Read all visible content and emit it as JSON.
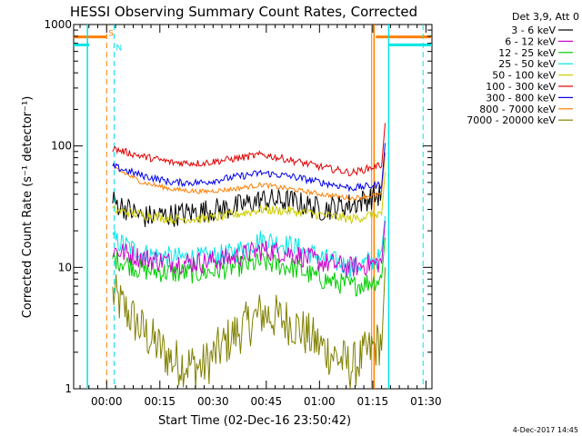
{
  "chart_data": {
    "type": "line",
    "title": "HESSI Observing Summary Count Rates, Corrected",
    "xlabel": "Start Time (02-Dec-16 23:50:42)",
    "ylabel": "Corrected Count Rate (s⁻¹ detector⁻¹)",
    "yscale": "log",
    "ylim": [
      1,
      1000
    ],
    "xlim_minutes_after_start": [
      0,
      101
    ],
    "x_ticks": [
      {
        "label": "00:00",
        "t": 9.3
      },
      {
        "label": "00:15",
        "t": 24.3
      },
      {
        "label": "00:30",
        "t": 39.3
      },
      {
        "label": "00:45",
        "t": 54.3
      },
      {
        "label": "01:00",
        "t": 69.3
      },
      {
        "label": "01:15",
        "t": 84.3
      },
      {
        "label": "01:30",
        "t": 99.3
      }
    ],
    "y_ticks": [
      {
        "label": "1",
        "v": 1
      },
      {
        "label": "10",
        "v": 10
      },
      {
        "label": "100",
        "v": 100
      },
      {
        "label": "1000",
        "v": 1000
      }
    ],
    "legend_header": "Det 3,9, Att 0",
    "legend_placement": "right",
    "footer_date": "4-Dec-2017 14:45",
    "flags": [
      {
        "label": "S",
        "color": "#ff7f00",
        "value": 790,
        "segments": [
          [
            0,
            9.3
          ],
          [
            85.2,
            101
          ]
        ],
        "bounds": [
          9.3,
          84.0
        ]
      },
      {
        "label": "N",
        "color": "#00e5e5",
        "value": 680,
        "segments": [
          [
            0,
            4.4
          ],
          [
            88.8,
            101
          ]
        ],
        "bounds": [
          11.4,
          98.5
        ]
      }
    ],
    "series": [
      {
        "name": "3 - 6 keV",
        "color": "#000000",
        "t_start": 11.0,
        "t_end": 86.8,
        "values": [
          35,
          26,
          27,
          29,
          31,
          36,
          35,
          30,
          33,
          40
        ]
      },
      {
        "name": "6 - 12 keV",
        "color": "#cc00cc",
        "t_start": 11.0,
        "t_end": 86.8,
        "values": [
          14,
          12,
          11,
          11,
          12,
          14,
          13,
          11,
          10,
          11
        ]
      },
      {
        "name": "12 - 25 keV",
        "color": "#00cc00",
        "t_start": 11.0,
        "t_end": 86.8,
        "values": [
          12,
          9.5,
          9,
          9,
          10,
          11,
          10,
          8,
          7,
          8
        ]
      },
      {
        "name": "25 - 50 keV",
        "color": "#00e5e5",
        "t_start": 11.0,
        "t_end": 86.8,
        "values": [
          17,
          13,
          12,
          12,
          13,
          17,
          15,
          12,
          10,
          12
        ]
      },
      {
        "name": "50 - 100 keV",
        "color": "#cccc00",
        "t_start": 11.0,
        "t_end": 86.8,
        "values": [
          30,
          27,
          25,
          25,
          27,
          30,
          29,
          27,
          25,
          28
        ]
      },
      {
        "name": "100 - 300 keV",
        "color": "#dd0000",
        "t_start": 11.0,
        "t_end": 86.8,
        "values": [
          95,
          82,
          73,
          72,
          78,
          85,
          76,
          67,
          60,
          70
        ]
      },
      {
        "name": "300 - 800 keV",
        "color": "#0000ee",
        "t_start": 11.0,
        "t_end": 86.8,
        "values": [
          68,
          57,
          50,
          50,
          55,
          60,
          56,
          50,
          45,
          48
        ]
      },
      {
        "name": "800 - 7000 keV",
        "color": "#ff7f00",
        "t_start": 11.0,
        "t_end": 86.8,
        "values": [
          67,
          50,
          44,
          42,
          44,
          48,
          44,
          40,
          37,
          40
        ]
      },
      {
        "name": "7000 - 20000 keV",
        "color": "#808000",
        "t_start": 11.0,
        "t_end": 86.8,
        "values": [
          6,
          3,
          1.7,
          1.5,
          2.7,
          4.2,
          3.5,
          2.2,
          1.5,
          2.5
        ]
      }
    ]
  }
}
